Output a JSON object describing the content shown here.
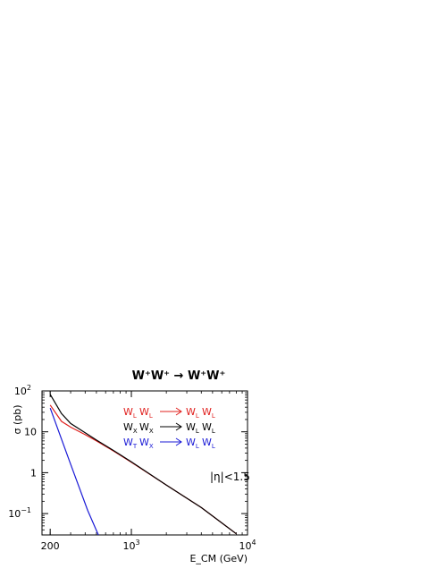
{
  "chart_data": {
    "type": "line",
    "title": "W⁺W⁺ → W⁺W⁺",
    "xlabel": "E_CM (GeV)",
    "ylabel": "σ (pb)",
    "x_scale": "log",
    "y_scale": "log",
    "xlim": [
      170,
      10000
    ],
    "ylim": [
      0.03,
      100
    ],
    "x_ticks": [
      {
        "value": 200,
        "base": "200",
        "exp": ""
      },
      {
        "value": 1000,
        "base": "10",
        "exp": "3"
      },
      {
        "value": 10000,
        "base": "10",
        "exp": "4"
      }
    ],
    "y_ticks": [
      {
        "value": 0.1,
        "base": "10",
        "exp": "−1"
      },
      {
        "value": 1,
        "base": "1",
        "exp": ""
      },
      {
        "value": 10,
        "base": "10",
        "exp": ""
      },
      {
        "value": 100,
        "base": "10",
        "exp": "2"
      }
    ],
    "annotation": "|η|<1.5",
    "legend_position": "top-right",
    "series": [
      {
        "label": {
          "a": "W",
          "as": "L",
          "b": "W",
          "bs": "L",
          "c": "W",
          "cs": "L",
          "d": "W",
          "ds": "L"
        },
        "color": "#e0201e",
        "x": [
          200,
          250,
          300,
          400,
          500,
          700,
          1000,
          2000,
          4000,
          8000
        ],
        "y": [
          45,
          18,
          13,
          8.5,
          6,
          3.4,
          1.8,
          0.5,
          0.14,
          0.032
        ]
      },
      {
        "label": {
          "a": "W",
          "as": "X",
          "b": "W",
          "bs": "X",
          "c": "W",
          "cs": "L",
          "d": "W",
          "ds": "L"
        },
        "color": "#000000",
        "x": [
          200,
          250,
          300,
          400,
          500,
          700,
          1000,
          2000,
          4000,
          8000
        ],
        "y": [
          82,
          28,
          16,
          9.5,
          6.3,
          3.5,
          1.85,
          0.5,
          0.14,
          0.032
        ]
      },
      {
        "label": {
          "a": "W",
          "as": "T",
          "b": "W",
          "bs": "X",
          "c": "W",
          "cs": "L",
          "d": "W",
          "ds": "L"
        },
        "color": "#1a1ad6",
        "x": [
          200,
          300,
          420,
          520
        ],
        "y": [
          38,
          1.6,
          0.12,
          0.03
        ]
      }
    ]
  }
}
